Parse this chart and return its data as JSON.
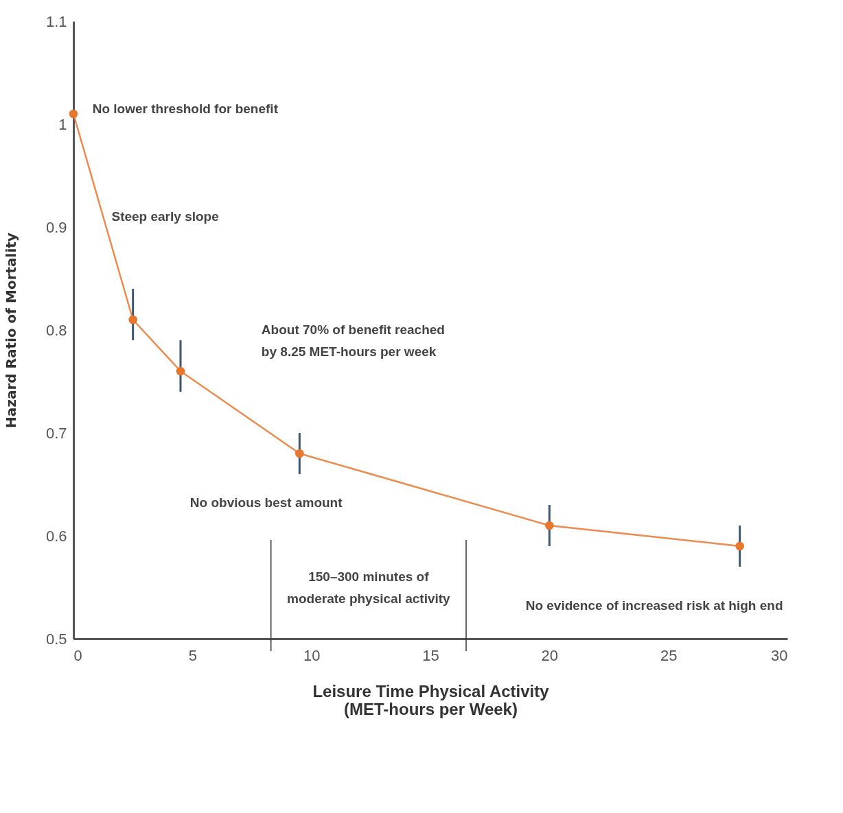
{
  "chart_data": {
    "type": "line",
    "xlabel": "Leisure Time Physical Activity\n(MET-hours per Week)",
    "ylabel": "Hazard Ratio of Mortality",
    "x": [
      0,
      2.5,
      4.5,
      9.5,
      20,
      28
    ],
    "series": [
      {
        "color": "#e8772e",
        "values": [
          1.01,
          0.81,
          0.76,
          0.68,
          0.61,
          0.59
        ],
        "errors": [
          null,
          [
            0.79,
            0.84
          ],
          [
            0.74,
            0.79
          ],
          [
            0.66,
            0.7
          ],
          [
            0.59,
            0.63
          ],
          [
            0.57,
            0.61
          ]
        ]
      }
    ],
    "xlim": [
      0,
      30
    ],
    "xticks": [
      0,
      5,
      10,
      15,
      20,
      25,
      30
    ],
    "ylim": [
      0.5,
      1.1
    ],
    "yticks": [
      0.5,
      0.6,
      0.7,
      0.8,
      0.9,
      1,
      1.1
    ],
    "ref_lines": [
      {
        "axis": "x",
        "value": 8.3,
        "color": "#333333"
      },
      {
        "axis": "x",
        "value": 16.5,
        "color": "#333333"
      }
    ],
    "annotations": [
      "No lower threshold for benefit",
      "Steep early slope",
      "About 70% of benefit reached\nby 8.25 MET-hours per week",
      "No obvious best amount",
      "150–300 minutes of\nmoderate physical activity",
      "No evidence of increased risk at high end"
    ],
    "grid": false,
    "marker": "circle",
    "line_style": "solid"
  }
}
